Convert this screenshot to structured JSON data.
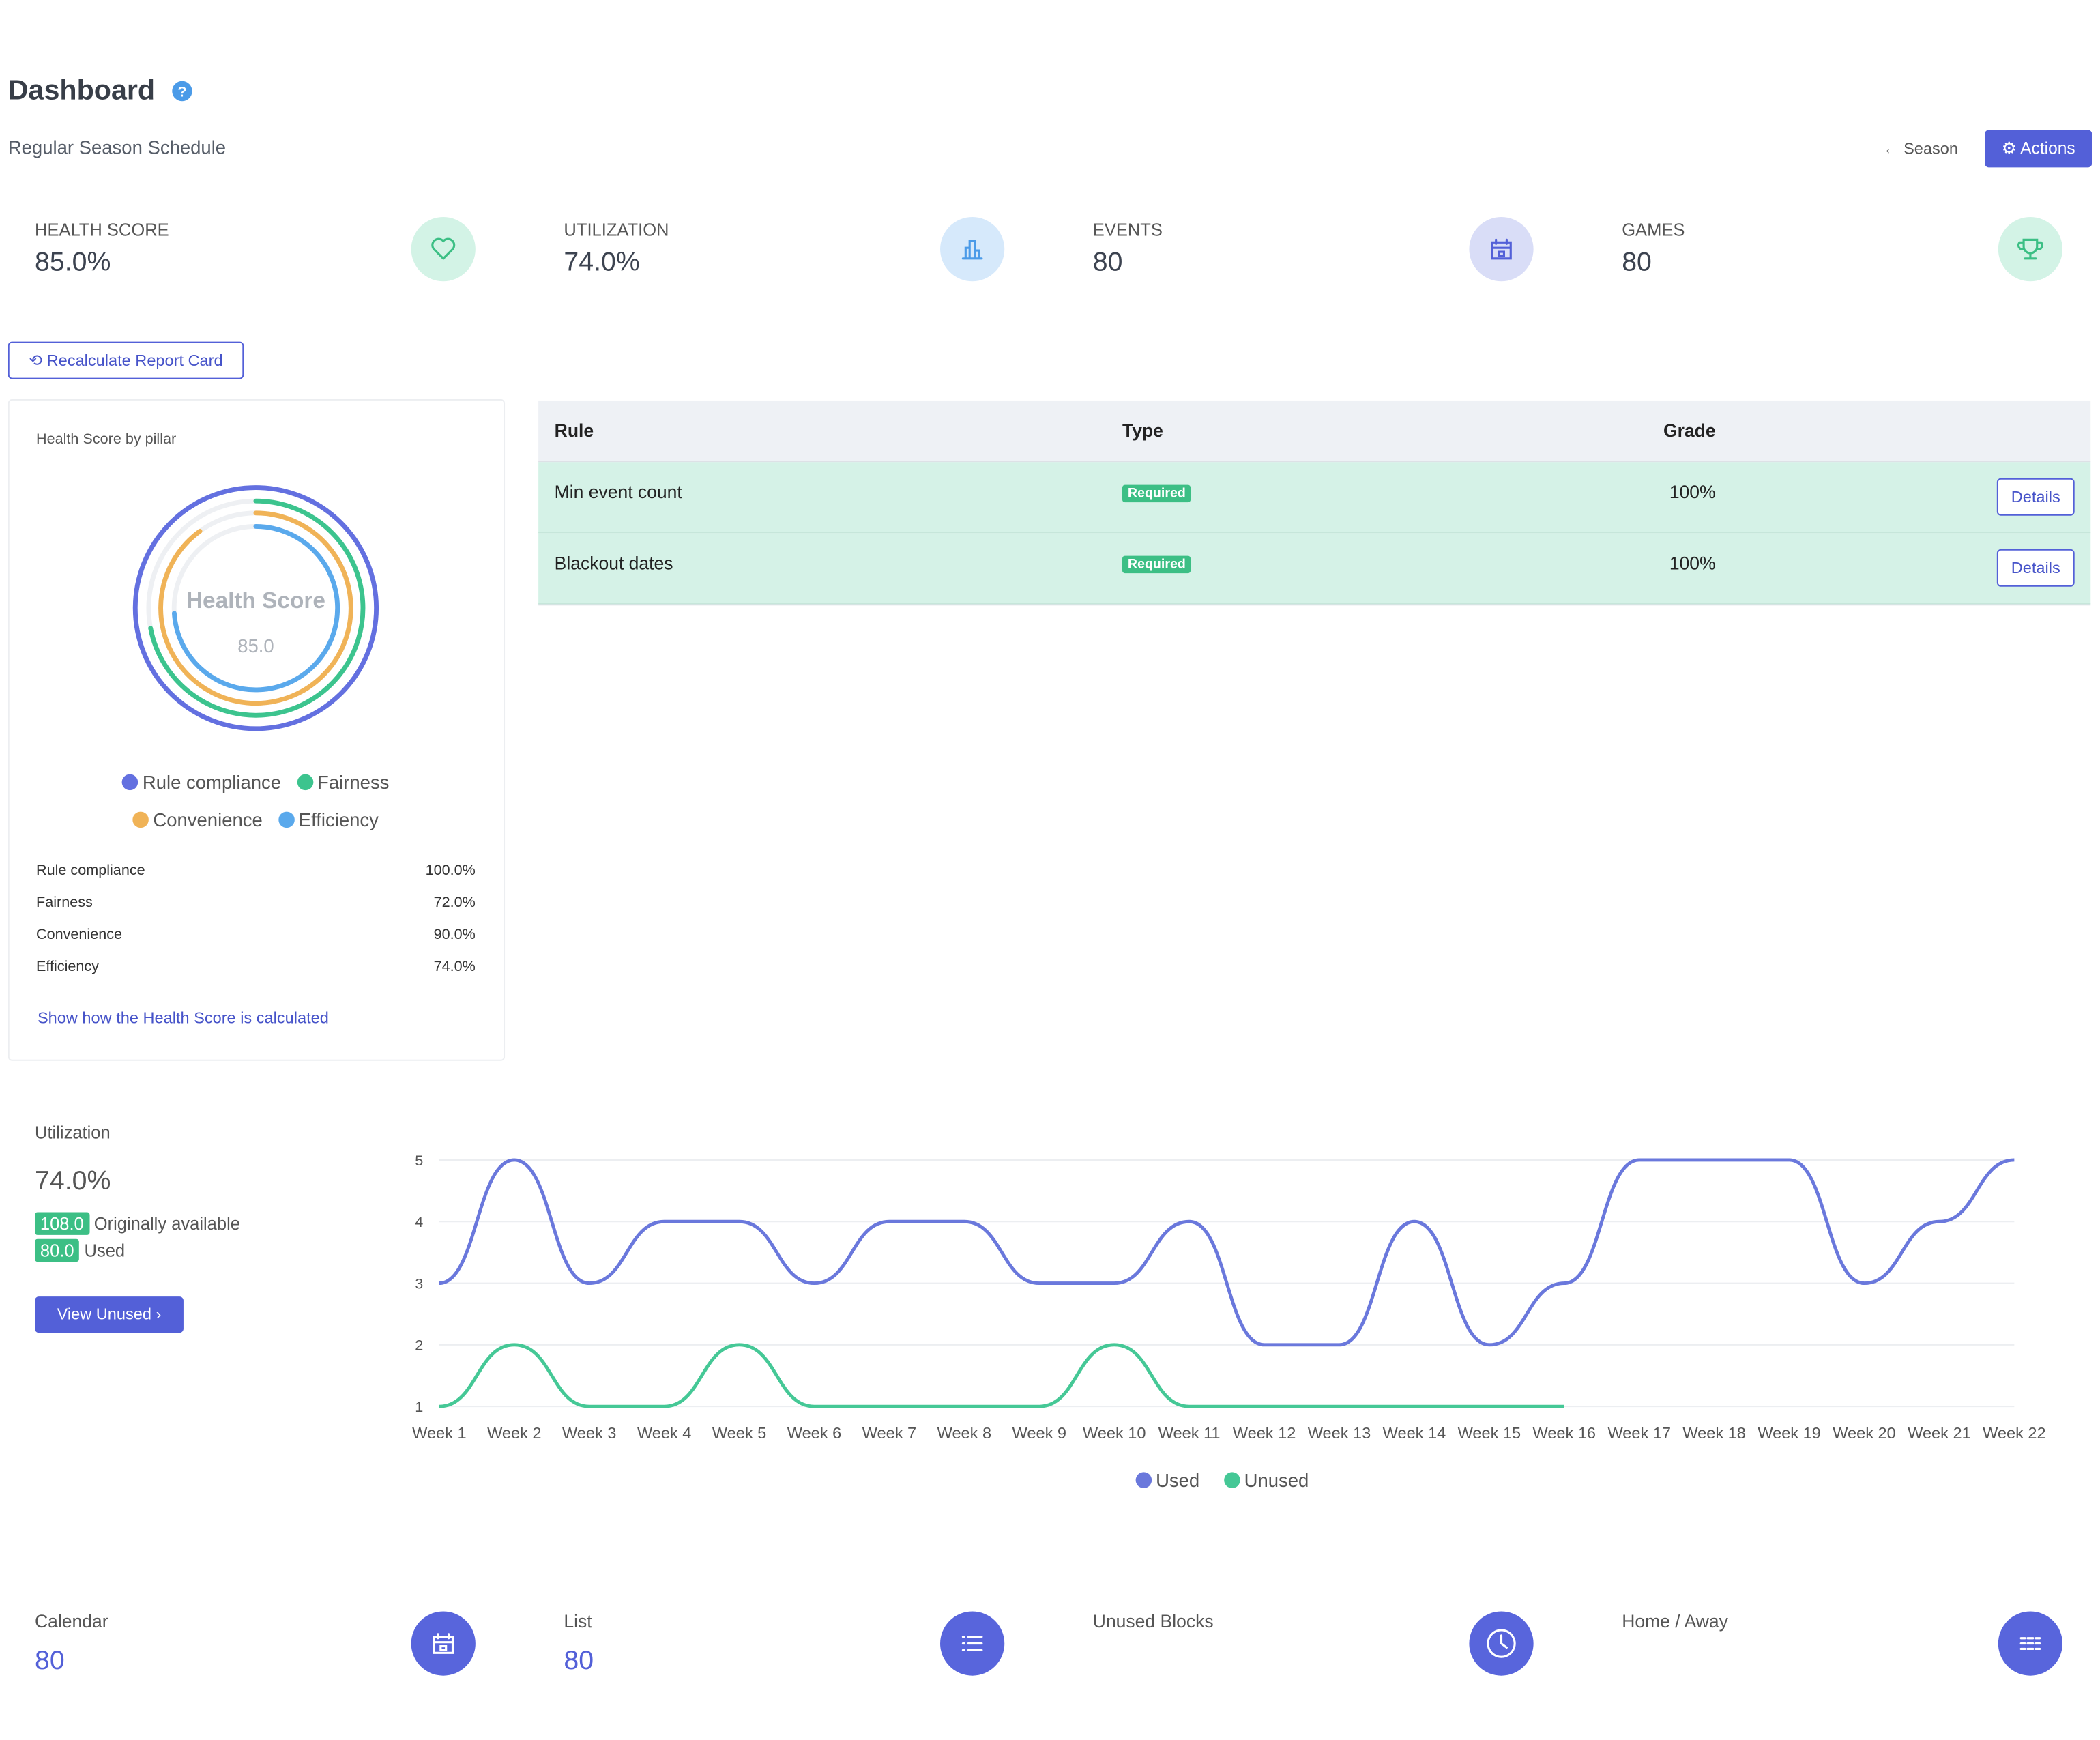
{
  "header": {
    "title": "Dashboard",
    "subtitle": "Regular Season Schedule",
    "back": "Season",
    "actions": "Actions"
  },
  "stats": [
    {
      "label": "HEALTH SCORE",
      "value": "85.0%"
    },
    {
      "label": "UTILIZATION",
      "value": "74.0%"
    },
    {
      "label": "EVENTS",
      "value": "80"
    },
    {
      "label": "GAMES",
      "value": "80"
    }
  ],
  "recalculate": "Recalculate Report Card",
  "health": {
    "title": "Health Score by pillar",
    "center_label": "Health Score",
    "center_value": "85.0",
    "pillars": [
      {
        "name": "Rule compliance",
        "value": 100,
        "label": "100.0%",
        "color": "#6370e0"
      },
      {
        "name": "Fairness",
        "value": 72,
        "label": "72.0%",
        "color": "#3cc48e"
      },
      {
        "name": "Convenience",
        "value": 90,
        "label": "90.0%",
        "color": "#f0b357"
      },
      {
        "name": "Efficiency",
        "value": 74,
        "label": "74.0%",
        "color": "#5aa9ec"
      }
    ],
    "link": "Show how the Health Score is calculated"
  },
  "table": {
    "columns": [
      "Rule",
      "Type",
      "Grade"
    ],
    "rows": [
      {
        "rule": "Min event count",
        "type": "Required",
        "grade": "100%",
        "action": "Details"
      },
      {
        "rule": "Blackout dates",
        "type": "Required",
        "grade": "100%",
        "action": "Details"
      }
    ]
  },
  "utilization": {
    "title": "Utilization",
    "value": "74.0%",
    "available": "108.0",
    "available_label": "Originally available",
    "used": "80.0",
    "used_label": "Used",
    "button": "View Unused"
  },
  "chart_data": {
    "type": "line",
    "categories": [
      "Week 1",
      "Week 2",
      "Week 3",
      "Week 4",
      "Week 5",
      "Week 6",
      "Week 7",
      "Week 8",
      "Week 9",
      "Week 10",
      "Week 11",
      "Week 12",
      "Week 13",
      "Week 14",
      "Week 15",
      "Week 16",
      "Week 17",
      "Week 18",
      "Week 19",
      "Week 20",
      "Week 21",
      "Week 22"
    ],
    "series": [
      {
        "name": "Used",
        "color": "#6a78dc",
        "values": [
          3,
          5,
          3,
          4,
          4,
          3,
          4,
          4,
          3,
          3,
          4,
          2,
          2,
          4,
          2,
          3,
          5,
          5,
          5,
          3,
          4,
          5
        ]
      },
      {
        "name": "Unused",
        "color": "#45c896",
        "values": [
          1,
          2,
          1,
          1,
          2,
          1,
          1,
          1,
          1,
          2,
          1,
          1,
          1,
          1,
          1,
          1,
          null,
          null,
          null,
          null,
          null,
          null
        ]
      }
    ],
    "ylim": [
      1,
      5
    ],
    "yticks": [
      1,
      2,
      3,
      4,
      5
    ],
    "grid": true,
    "legend": "bottom"
  },
  "bottom": [
    {
      "label": "Calendar",
      "value": "80"
    },
    {
      "label": "List",
      "value": "80"
    },
    {
      "label": "Unused Blocks"
    },
    {
      "label": "Home / Away"
    }
  ]
}
